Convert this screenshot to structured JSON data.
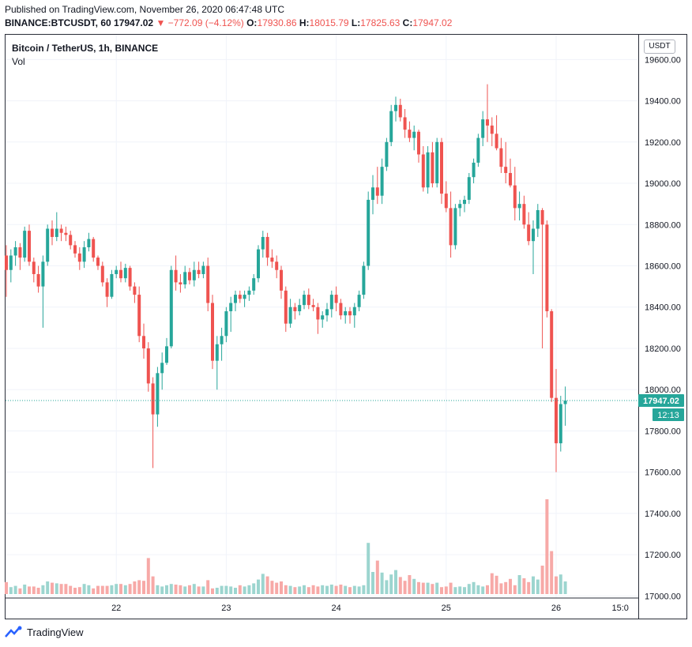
{
  "header": {
    "published": "Published on TradingView.com, November 26, 2020 06:47:48 UTC",
    "ticker": "BINANCE:BTCUSDT, 60",
    "last": "17947.02",
    "arrow": "▼",
    "change": "−772.09 (−4.12%)",
    "o_label": "O:",
    "o_value": "17930.86",
    "h_label": "H:",
    "h_value": "18015.79",
    "l_label": "L:",
    "l_value": "17825.63",
    "c_label": "C:",
    "c_value": "17947.02"
  },
  "symbol_title": "Bitcoin / TetherUS, 1h, BINANCE",
  "volume_label": "Vol",
  "currency_badge": "USDT",
  "price_tag": "17947.02",
  "countdown_tag": "12:13",
  "footer_brand": "TradingView",
  "colors": {
    "up": "#26a69a",
    "down": "#ef5350",
    "up_vol": "#9cd5cf",
    "down_vol": "#f7a9a7",
    "grid": "#f0f3fa"
  },
  "chart_data": {
    "type": "candlestick",
    "title": "Bitcoin / TetherUS, 1h, BINANCE",
    "y_ticks": [
      "19600.00",
      "19400.00",
      "19200.00",
      "19000.00",
      "18800.00",
      "18600.00",
      "18400.00",
      "18200.00",
      "18000.00",
      "17800.00",
      "17600.00",
      "17400.00",
      "17200.00",
      "17000.00"
    ],
    "ylim": [
      16990,
      19720
    ],
    "x_ticks": [
      "22",
      "23",
      "24",
      "25",
      "26",
      "15:0"
    ],
    "x_tick_bar_index": [
      24,
      48,
      72,
      96,
      120,
      134
    ],
    "last_price": 17947.02,
    "candles": [
      [
        18650,
        18700,
        18450,
        18580
      ],
      [
        18580,
        18680,
        18520,
        18650
      ],
      [
        18650,
        18720,
        18600,
        18690
      ],
      [
        18690,
        18710,
        18580,
        18640
      ],
      [
        18640,
        18790,
        18620,
        18770
      ],
      [
        18770,
        18800,
        18600,
        18620
      ],
      [
        18620,
        18640,
        18520,
        18560
      ],
      [
        18560,
        18600,
        18470,
        18500
      ],
      [
        18500,
        18650,
        18300,
        18620
      ],
      [
        18620,
        18800,
        18600,
        18780
      ],
      [
        18780,
        18820,
        18700,
        18740
      ],
      [
        18740,
        18860,
        18720,
        18780
      ],
      [
        18780,
        18800,
        18720,
        18760
      ],
      [
        18760,
        18790,
        18720,
        18750
      ],
      [
        18750,
        18770,
        18680,
        18700
      ],
      [
        18700,
        18720,
        18640,
        18660
      ],
      [
        18660,
        18690,
        18580,
        18620
      ],
      [
        18620,
        18720,
        18590,
        18690
      ],
      [
        18690,
        18760,
        18670,
        18730
      ],
      [
        18730,
        18740,
        18620,
        18640
      ],
      [
        18640,
        18650,
        18580,
        18600
      ],
      [
        18600,
        18620,
        18500,
        18520
      ],
      [
        18520,
        18540,
        18400,
        18450
      ],
      [
        18450,
        18580,
        18440,
        18560
      ],
      [
        18560,
        18600,
        18540,
        18580
      ],
      [
        18580,
        18620,
        18520,
        18540
      ],
      [
        18540,
        18610,
        18520,
        18590
      ],
      [
        18590,
        18600,
        18480,
        18500
      ],
      [
        18500,
        18520,
        18420,
        18460
      ],
      [
        18460,
        18500,
        18230,
        18260
      ],
      [
        18260,
        18320,
        18150,
        18200
      ],
      [
        18200,
        18230,
        17990,
        18030
      ],
      [
        18030,
        18060,
        17620,
        17880
      ],
      [
        17880,
        18110,
        17820,
        18080
      ],
      [
        18080,
        18180,
        18000,
        18130
      ],
      [
        18130,
        18250,
        18120,
        18210
      ],
      [
        18210,
        18600,
        18200,
        18580
      ],
      [
        18580,
        18650,
        18480,
        18520
      ],
      [
        18520,
        18560,
        18470,
        18510
      ],
      [
        18510,
        18600,
        18490,
        18570
      ],
      [
        18570,
        18590,
        18510,
        18530
      ],
      [
        18530,
        18620,
        18500,
        18580
      ],
      [
        18580,
        18620,
        18540,
        18560
      ],
      [
        18560,
        18620,
        18540,
        18600
      ],
      [
        18600,
        18640,
        18380,
        18420
      ],
      [
        18420,
        18460,
        18100,
        18140
      ],
      [
        18140,
        18260,
        18000,
        18220
      ],
      [
        18220,
        18300,
        18140,
        18260
      ],
      [
        18260,
        18400,
        18230,
        18380
      ],
      [
        18380,
        18450,
        18280,
        18420
      ],
      [
        18420,
        18480,
        18380,
        18460
      ],
      [
        18460,
        18480,
        18420,
        18440
      ],
      [
        18440,
        18480,
        18400,
        18460
      ],
      [
        18460,
        18500,
        18430,
        18480
      ],
      [
        18480,
        18560,
        18460,
        18540
      ],
      [
        18540,
        18700,
        18520,
        18680
      ],
      [
        18680,
        18770,
        18640,
        18740
      ],
      [
        18740,
        18760,
        18600,
        18640
      ],
      [
        18640,
        18680,
        18590,
        18620
      ],
      [
        18620,
        18650,
        18540,
        18580
      ],
      [
        18580,
        18600,
        18440,
        18480
      ],
      [
        18480,
        18500,
        18280,
        18320
      ],
      [
        18320,
        18440,
        18300,
        18400
      ],
      [
        18400,
        18420,
        18340,
        18380
      ],
      [
        18380,
        18440,
        18360,
        18410
      ],
      [
        18410,
        18480,
        18390,
        18460
      ],
      [
        18460,
        18490,
        18390,
        18410
      ],
      [
        18410,
        18440,
        18380,
        18400
      ],
      [
        18400,
        18420,
        18270,
        18340
      ],
      [
        18340,
        18380,
        18300,
        18360
      ],
      [
        18360,
        18420,
        18330,
        18390
      ],
      [
        18390,
        18480,
        18350,
        18460
      ],
      [
        18460,
        18500,
        18380,
        18420
      ],
      [
        18420,
        18440,
        18340,
        18360
      ],
      [
        18360,
        18400,
        18320,
        18380
      ],
      [
        18380,
        18400,
        18320,
        18360
      ],
      [
        18360,
        18420,
        18300,
        18400
      ],
      [
        18400,
        18480,
        18380,
        18460
      ],
      [
        18460,
        18620,
        18440,
        18600
      ],
      [
        18600,
        18960,
        18580,
        18920
      ],
      [
        18920,
        19040,
        18850,
        18980
      ],
      [
        18980,
        19080,
        18900,
        18940
      ],
      [
        18940,
        19120,
        18900,
        19080
      ],
      [
        19080,
        19220,
        19060,
        19200
      ],
      [
        19200,
        19380,
        19180,
        19350
      ],
      [
        19350,
        19420,
        19300,
        19380
      ],
      [
        19380,
        19410,
        19300,
        19320
      ],
      [
        19320,
        19360,
        19220,
        19260
      ],
      [
        19260,
        19300,
        19200,
        19220
      ],
      [
        19220,
        19280,
        19160,
        19250
      ],
      [
        19250,
        19260,
        19100,
        19140
      ],
      [
        19140,
        19180,
        18960,
        18980
      ],
      [
        18980,
        19180,
        18950,
        19150
      ],
      [
        19150,
        19200,
        18980,
        19000
      ],
      [
        19000,
        19220,
        18980,
        19200
      ],
      [
        19200,
        19220,
        18900,
        18950
      ],
      [
        18950,
        19010,
        18860,
        18880
      ],
      [
        18880,
        18960,
        18640,
        18700
      ],
      [
        18700,
        18900,
        18680,
        18880
      ],
      [
        18880,
        18920,
        18840,
        18900
      ],
      [
        18900,
        18940,
        18860,
        18920
      ],
      [
        18920,
        19050,
        18900,
        19030
      ],
      [
        19030,
        19120,
        19000,
        19100
      ],
      [
        19100,
        19240,
        19080,
        19220
      ],
      [
        19220,
        19350,
        19180,
        19310
      ],
      [
        19310,
        19480,
        19200,
        19280
      ],
      [
        19280,
        19320,
        19180,
        19240
      ],
      [
        19240,
        19330,
        19160,
        19170
      ],
      [
        19170,
        19220,
        19050,
        19080
      ],
      [
        19080,
        19200,
        19000,
        19050
      ],
      [
        19050,
        19120,
        18980,
        18990
      ],
      [
        18990,
        19080,
        18820,
        18880
      ],
      [
        18880,
        18960,
        18820,
        18900
      ],
      [
        18900,
        18940,
        18780,
        18800
      ],
      [
        18800,
        18860,
        18700,
        18720
      ],
      [
        18720,
        18820,
        18560,
        18780
      ],
      [
        18780,
        18900,
        18740,
        18870
      ],
      [
        18870,
        18880,
        18200,
        18800
      ],
      [
        18800,
        18820,
        18350,
        18380
      ],
      [
        18380,
        18390,
        17940,
        17960
      ],
      [
        17960,
        18100,
        17600,
        17740
      ],
      [
        17740,
        17970,
        17700,
        17930
      ],
      [
        17930,
        18015,
        17825,
        17947
      ]
    ],
    "volumes": [
      19,
      11,
      13,
      9,
      15,
      12,
      12,
      10,
      14,
      20,
      18,
      17,
      16,
      16,
      13,
      10,
      11,
      16,
      14,
      9,
      13,
      13,
      13,
      14,
      16,
      16,
      14,
      16,
      20,
      22,
      21,
      57,
      28,
      14,
      12,
      14,
      16,
      15,
      14,
      12,
      14,
      16,
      12,
      12,
      22,
      9,
      10,
      13,
      13,
      12,
      10,
      14,
      12,
      14,
      17,
      23,
      32,
      28,
      21,
      18,
      20,
      14,
      13,
      11,
      12,
      14,
      11,
      14,
      12,
      14,
      13,
      15,
      13,
      15,
      13,
      11,
      13,
      12,
      14,
      81,
      35,
      53,
      34,
      22,
      31,
      38,
      27,
      21,
      30,
      24,
      19,
      18,
      18,
      16,
      18,
      11,
      12,
      18,
      11,
      12,
      11,
      16,
      19,
      14,
      12,
      14,
      33,
      29,
      17,
      19,
      24,
      14,
      30,
      25,
      19,
      28,
      23,
      45,
      150,
      68,
      28,
      31,
      20
    ]
  }
}
